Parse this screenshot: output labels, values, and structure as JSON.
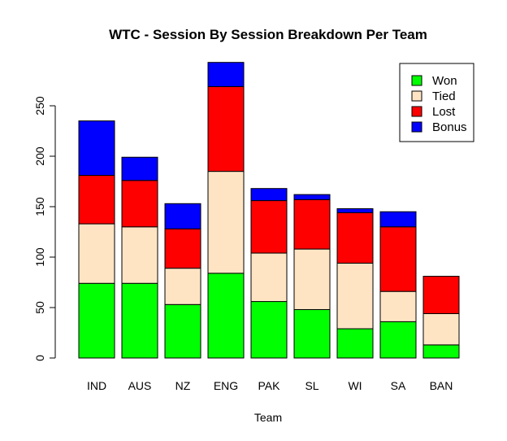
{
  "chart_data": {
    "type": "bar",
    "stacked": true,
    "title": "WTC - Session By Session Breakdown Per Team",
    "xlabel": "Team",
    "ylabel": "",
    "categories": [
      "IND",
      "AUS",
      "NZ",
      "ENG",
      "PAK",
      "SL",
      "WI",
      "SA",
      "BAN"
    ],
    "ylim": [
      0,
      280
    ],
    "yticks": [
      0,
      50,
      100,
      150,
      200,
      250
    ],
    "legend_position": "top-right",
    "series": [
      {
        "name": "Won",
        "color": "#00ff00",
        "values": [
          74,
          74,
          53,
          84,
          56,
          48,
          29,
          36,
          13
        ]
      },
      {
        "name": "Tied",
        "color": "#ffe4c4",
        "values": [
          59,
          56,
          36,
          101,
          48,
          60,
          65,
          30,
          31
        ]
      },
      {
        "name": "Lost",
        "color": "#ff0000",
        "values": [
          48,
          46,
          39,
          84,
          52,
          49,
          50,
          64,
          37
        ]
      },
      {
        "name": "Bonus",
        "color": "#0000ff",
        "values": [
          54,
          23,
          25,
          24,
          12,
          5,
          4,
          15,
          0
        ]
      }
    ]
  }
}
